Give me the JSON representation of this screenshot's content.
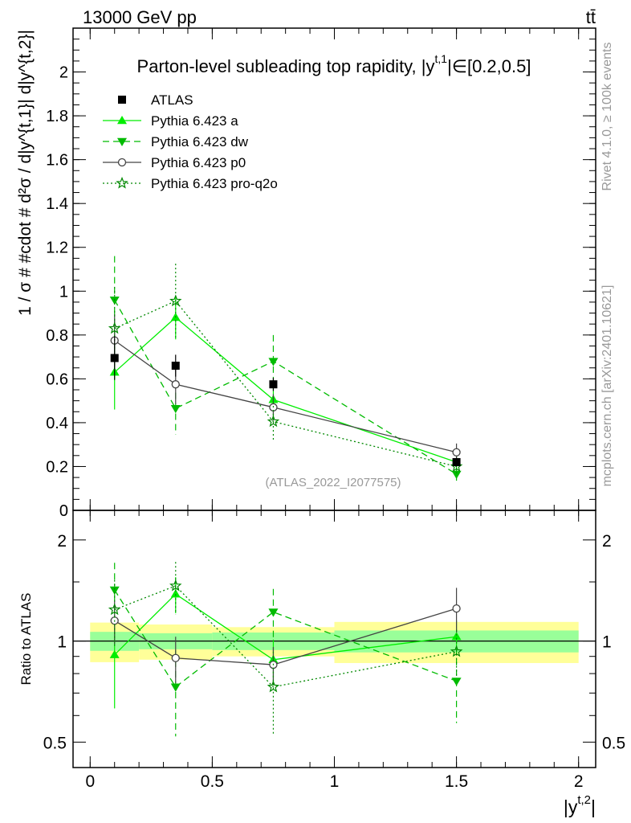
{
  "header": {
    "energy_label": "13000 GeV pp",
    "process_label": "tt̄"
  },
  "side_labels": {
    "rivet": "Rivet 4.1.0, ≥ 100k events",
    "mcplots": "mcplots.cern.ch [arXiv:2401.10621]"
  },
  "watermark": "(ATLAS_2022_I2077575)",
  "chart_data": {
    "type": "scatter",
    "title": "Parton-level subleading top rapidity, |y^{t,1}| ∈ [0.2,0.5]",
    "title_main": "Parton-level subleading top rapidity, |y",
    "title_sup": "t,1",
    "title_tail": "|∈[0.2,0.5]",
    "xlabel": "|y^{t,2}|",
    "xlabel_main": "|y",
    "xlabel_sup": "t,2",
    "xlabel_tail": "|",
    "ylabel": "1 / σ # #cdot # d²σ / d|y^{t,1}| d|y^{t,2}|",
    "ratio_ylabel": "Ratio to ATLAS",
    "xlim": [
      -0.07,
      2.07
    ],
    "ylim": [
      0,
      2.2
    ],
    "ratio_ylim": [
      0.42,
      2.45
    ],
    "x_ticks": [
      0,
      0.5,
      1,
      1.5,
      2
    ],
    "x_tick_labels": [
      "0",
      "0.5",
      "1",
      "1.5",
      "2"
    ],
    "y_ticks": [
      0,
      0.2,
      0.4,
      0.6,
      0.8,
      1,
      1.2,
      1.4,
      1.6,
      1.8,
      2
    ],
    "y_tick_labels": [
      "0",
      "0.2",
      "0.4",
      "0.6",
      "0.8",
      "1",
      "1.2",
      "1.4",
      "1.6",
      "1.8",
      "2"
    ],
    "ratio_ticks": [
      0.5,
      1,
      2
    ],
    "ratio_tick_labels": [
      "0.5",
      "1",
      "2"
    ],
    "bins": [
      [
        0,
        0.2
      ],
      [
        0.2,
        0.5
      ],
      [
        0.5,
        1.0
      ],
      [
        1.0,
        2.0
      ]
    ],
    "x": [
      0.1,
      0.35,
      0.75,
      1.5
    ],
    "data": {
      "name": "ATLAS",
      "values": [
        0.695,
        0.66,
        0.575,
        0.22
      ],
      "errors": [
        0.1,
        0.05,
        0.03,
        0.02
      ],
      "ratio_band_inner": [
        0.065,
        0.055,
        0.06,
        0.075
      ],
      "ratio_band_outer": [
        0.135,
        0.12,
        0.1,
        0.14
      ]
    },
    "series": [
      {
        "name": "Pythia 6.423 a",
        "color": "#00ee00",
        "dash": "",
        "marker": "triangle-up",
        "values": [
          0.63,
          0.88,
          0.505,
          0.22
        ],
        "errors": [
          0.17,
          0.1,
          0.07,
          0.03
        ],
        "ratio": [
          0.91,
          1.38,
          0.88,
          1.03
        ],
        "ratio_err": [
          0.28,
          0.17,
          0.13,
          0.12
        ]
      },
      {
        "name": "Pythia 6.423 dw",
        "color": "#00bb00",
        "dash": "8,5",
        "marker": "triangle-down",
        "values": [
          0.96,
          0.465,
          0.68,
          0.165
        ],
        "errors": [
          0.2,
          0.12,
          0.12,
          0.03
        ],
        "ratio": [
          1.42,
          0.73,
          1.22,
          0.76
        ],
        "ratio_err": [
          0.29,
          0.21,
          0.21,
          0.19
        ]
      },
      {
        "name": "Pythia 6.423 p0",
        "color": "#444444",
        "dash": "",
        "marker": "circle-open",
        "values": [
          0.775,
          0.575,
          0.47,
          0.265
        ],
        "errors": [
          0.12,
          0.09,
          0.06,
          0.04
        ],
        "ratio": [
          1.15,
          0.89,
          0.85,
          1.25
        ],
        "ratio_err": [
          0.17,
          0.14,
          0.11,
          0.19
        ]
      },
      {
        "name": "Pythia 6.423 pro-q2o",
        "color": "#008800",
        "dash": "2,3",
        "marker": "star",
        "values": [
          0.83,
          0.955,
          0.405,
          0.2
        ],
        "errors": [
          0.19,
          0.17,
          0.09,
          0.03
        ],
        "ratio": [
          1.24,
          1.46,
          0.73,
          0.93
        ],
        "ratio_err": [
          0.28,
          0.26,
          0.2,
          0.15
        ]
      }
    ]
  }
}
